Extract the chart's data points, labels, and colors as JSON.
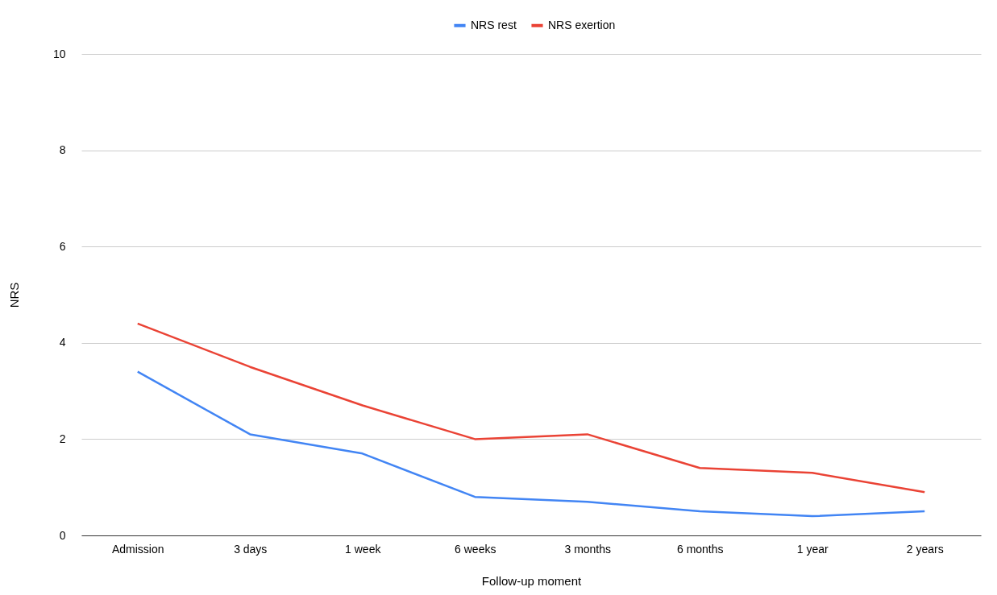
{
  "chart_data": {
    "type": "line",
    "xlabel": "Follow-up moment",
    "ylabel": "NRS",
    "categories": [
      "Admission",
      "3 days",
      "1 week",
      "6 weeks",
      "3 months",
      "6 months",
      "1 year",
      "2 years"
    ],
    "series": [
      {
        "name": "NRS rest",
        "color": "#4285f4",
        "values": [
          3.4,
          2.1,
          1.7,
          0.8,
          0.7,
          0.5,
          0.4,
          0.5
        ]
      },
      {
        "name": "NRS exertion",
        "color": "#ea4335",
        "values": [
          4.4,
          3.5,
          2.7,
          2.0,
          2.1,
          1.4,
          1.3,
          0.9
        ]
      }
    ],
    "ylim": [
      0,
      10
    ],
    "yticks": [
      0,
      2,
      4,
      6,
      8,
      10
    ],
    "grid": "y",
    "legend": "top",
    "marker": "none",
    "line_style": "solid"
  }
}
